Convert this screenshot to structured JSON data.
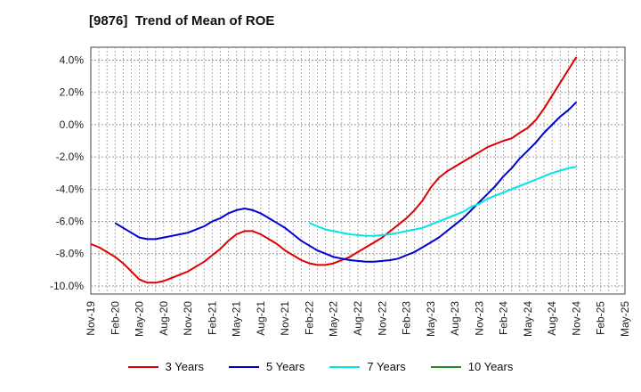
{
  "chart_data": {
    "type": "line",
    "title": "[9876]  Trend of Mean of ROE",
    "xlabel": "",
    "ylabel": "",
    "x_ticks": [
      "Nov-19",
      "Feb-20",
      "May-20",
      "Aug-20",
      "Nov-20",
      "Feb-21",
      "May-21",
      "Aug-21",
      "Nov-21",
      "Feb-22",
      "May-22",
      "Aug-22",
      "Nov-22",
      "Feb-23",
      "May-23",
      "Aug-23",
      "Nov-23",
      "Feb-24",
      "May-24",
      "Aug-24",
      "Nov-24",
      "Feb-25",
      "May-25"
    ],
    "y_ticks": [
      "4.0%",
      "2.0%",
      "0.0%",
      "-2.0%",
      "-4.0%",
      "-6.0%",
      "-8.0%",
      "-10.0%"
    ],
    "y_tick_values": [
      4,
      2,
      0,
      -2,
      -4,
      -6,
      -8,
      -10
    ],
    "ylim": [
      -10.5,
      4.8
    ],
    "grid": true,
    "legend_position": "bottom",
    "series": [
      {
        "name": "3 Years",
        "color": "#dd0000",
        "x": [
          "Nov-19",
          "Dec-19",
          "Jan-20",
          "Feb-20",
          "Mar-20",
          "Apr-20",
          "May-20",
          "Jun-20",
          "Jul-20",
          "Aug-20",
          "Sep-20",
          "Oct-20",
          "Nov-20",
          "Dec-20",
          "Jan-21",
          "Feb-21",
          "Mar-21",
          "Apr-21",
          "May-21",
          "Jun-21",
          "Jul-21",
          "Aug-21",
          "Sep-21",
          "Oct-21",
          "Nov-21",
          "Dec-21",
          "Jan-22",
          "Feb-22",
          "Mar-22",
          "Apr-22",
          "May-22",
          "Jun-22",
          "Jul-22",
          "Aug-22",
          "Sep-22",
          "Oct-22",
          "Nov-22",
          "Dec-22",
          "Jan-23",
          "Feb-23",
          "Mar-23",
          "Apr-23",
          "May-23",
          "Jun-23",
          "Jul-23",
          "Aug-23",
          "Sep-23",
          "Oct-23",
          "Nov-23",
          "Dec-23",
          "Jan-24",
          "Feb-24",
          "Mar-24",
          "Apr-24",
          "May-24",
          "Jun-24",
          "Jul-24",
          "Aug-24",
          "Sep-24",
          "Oct-24",
          "Nov-24"
        ],
        "values": [
          -7.4,
          -7.6,
          -7.9,
          -8.2,
          -8.6,
          -9.1,
          -9.6,
          -9.8,
          -9.8,
          -9.7,
          -9.5,
          -9.3,
          -9.1,
          -8.8,
          -8.5,
          -8.1,
          -7.7,
          -7.2,
          -6.8,
          -6.6,
          -6.6,
          -6.8,
          -7.1,
          -7.4,
          -7.8,
          -8.1,
          -8.4,
          -8.6,
          -8.7,
          -8.7,
          -8.6,
          -8.4,
          -8.2,
          -7.9,
          -7.6,
          -7.3,
          -7.0,
          -6.6,
          -6.2,
          -5.8,
          -5.3,
          -4.7,
          -3.9,
          -3.3,
          -2.9,
          -2.6,
          -2.3,
          -2.0,
          -1.7,
          -1.4,
          -1.2,
          -1.0,
          -0.85,
          -0.5,
          -0.2,
          0.3,
          1.0,
          1.8,
          2.6,
          3.4,
          4.2
        ]
      },
      {
        "name": "5 Years",
        "color": "#0000cc",
        "x": [
          "Feb-20",
          "Mar-20",
          "Apr-20",
          "May-20",
          "Jun-20",
          "Jul-20",
          "Aug-20",
          "Sep-20",
          "Oct-20",
          "Nov-20",
          "Dec-20",
          "Jan-21",
          "Feb-21",
          "Mar-21",
          "Apr-21",
          "May-21",
          "Jun-21",
          "Jul-21",
          "Aug-21",
          "Sep-21",
          "Oct-21",
          "Nov-21",
          "Dec-21",
          "Jan-22",
          "Feb-22",
          "Mar-22",
          "Apr-22",
          "May-22",
          "Jun-22",
          "Jul-22",
          "Aug-22",
          "Sep-22",
          "Oct-22",
          "Nov-22",
          "Dec-22",
          "Jan-23",
          "Feb-23",
          "Mar-23",
          "Apr-23",
          "May-23",
          "Jun-23",
          "Jul-23",
          "Aug-23",
          "Sep-23",
          "Oct-23",
          "Nov-23",
          "Dec-23",
          "Jan-24",
          "Feb-24",
          "Mar-24",
          "Apr-24",
          "May-24",
          "Jun-24",
          "Jul-24",
          "Aug-24",
          "Sep-24",
          "Oct-24",
          "Nov-24"
        ],
        "values": [
          -6.1,
          -6.4,
          -6.7,
          -7.0,
          -7.1,
          -7.1,
          -7.0,
          -6.9,
          -6.8,
          -6.7,
          -6.5,
          -6.3,
          -6.0,
          -5.8,
          -5.5,
          -5.3,
          -5.2,
          -5.3,
          -5.5,
          -5.8,
          -6.1,
          -6.4,
          -6.8,
          -7.2,
          -7.5,
          -7.8,
          -8.0,
          -8.2,
          -8.3,
          -8.4,
          -8.45,
          -8.5,
          -8.5,
          -8.45,
          -8.4,
          -8.3,
          -8.1,
          -7.9,
          -7.6,
          -7.3,
          -7.0,
          -6.6,
          -6.2,
          -5.8,
          -5.3,
          -4.8,
          -4.3,
          -3.8,
          -3.2,
          -2.7,
          -2.1,
          -1.6,
          -1.1,
          -0.5,
          0.0,
          0.5,
          0.9,
          1.4
        ]
      },
      {
        "name": "7 Years",
        "color": "#00e5e5",
        "x": [
          "Feb-22",
          "Mar-22",
          "Apr-22",
          "May-22",
          "Jun-22",
          "Jul-22",
          "Aug-22",
          "Sep-22",
          "Oct-22",
          "Nov-22",
          "Dec-22",
          "Jan-23",
          "Feb-23",
          "Mar-23",
          "Apr-23",
          "May-23",
          "Jun-23",
          "Jul-23",
          "Aug-23",
          "Sep-23",
          "Oct-23",
          "Nov-23",
          "Dec-23",
          "Jan-24",
          "Feb-24",
          "Mar-24",
          "Apr-24",
          "May-24",
          "Jun-24",
          "Jul-24",
          "Aug-24",
          "Sep-24",
          "Oct-24",
          "Nov-24"
        ],
        "values": [
          -6.1,
          -6.3,
          -6.5,
          -6.6,
          -6.7,
          -6.8,
          -6.85,
          -6.9,
          -6.9,
          -6.85,
          -6.8,
          -6.7,
          -6.6,
          -6.5,
          -6.4,
          -6.2,
          -6.0,
          -5.8,
          -5.6,
          -5.4,
          -5.1,
          -4.9,
          -4.6,
          -4.4,
          -4.2,
          -4.0,
          -3.8,
          -3.6,
          -3.4,
          -3.2,
          -3.0,
          -2.85,
          -2.7,
          -2.6
        ]
      },
      {
        "name": "10 Years",
        "color": "#228b22",
        "x": [],
        "values": []
      }
    ]
  }
}
